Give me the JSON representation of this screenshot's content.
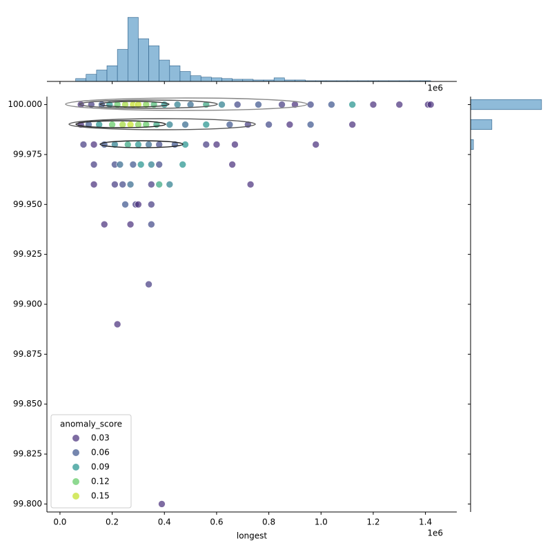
{
  "chart_data": [
    {
      "type": "scatter",
      "x_label": "longest",
      "x_offset_label": "1e6",
      "x": [
        80000,
        120000,
        160000,
        190000,
        220000,
        250000,
        280000,
        300000,
        330000,
        360000,
        400000,
        450000,
        500000,
        560000,
        620000,
        680000,
        760000,
        850000,
        900000,
        960000,
        1040000,
        1120000,
        1200000,
        1300000,
        1410000,
        1420000,
        80000,
        110000,
        150000,
        200000,
        240000,
        270000,
        300000,
        330000,
        370000,
        420000,
        480000,
        560000,
        650000,
        720000,
        800000,
        880000,
        960000,
        1120000,
        90000,
        130000,
        170000,
        210000,
        260000,
        300000,
        340000,
        380000,
        440000,
        480000,
        560000,
        600000,
        670000,
        980000,
        130000,
        210000,
        230000,
        280000,
        310000,
        350000,
        380000,
        470000,
        660000,
        130000,
        210000,
        240000,
        270000,
        350000,
        380000,
        420000,
        730000,
        250000,
        290000,
        300000,
        350000,
        170000,
        270000,
        350000,
        340000,
        220000,
        390000
      ],
      "y": [
        100,
        100,
        100,
        100,
        100,
        100,
        100,
        100,
        100,
        100,
        100,
        100,
        100,
        100,
        100,
        100,
        100,
        100,
        100,
        100,
        100,
        100,
        100,
        100,
        100,
        100,
        99.99,
        99.99,
        99.99,
        99.99,
        99.99,
        99.99,
        99.99,
        99.99,
        99.99,
        99.99,
        99.99,
        99.99,
        99.99,
        99.99,
        99.99,
        99.99,
        99.99,
        99.99,
        99.98,
        99.98,
        99.98,
        99.98,
        99.98,
        99.98,
        99.98,
        99.98,
        99.98,
        99.98,
        99.98,
        99.98,
        99.98,
        99.98,
        99.97,
        99.97,
        99.97,
        99.97,
        99.97,
        99.97,
        99.97,
        99.97,
        99.97,
        99.96,
        99.96,
        99.96,
        99.96,
        99.96,
        99.96,
        99.96,
        99.96,
        99.95,
        99.95,
        99.95,
        99.95,
        99.94,
        99.94,
        99.94,
        99.91,
        99.89,
        99.8
      ],
      "hue": [
        0.02,
        0.04,
        0.06,
        0.09,
        0.12,
        0.14,
        0.16,
        0.15,
        0.13,
        0.11,
        0.09,
        0.08,
        0.07,
        0.1,
        0.08,
        0.05,
        0.06,
        0.04,
        0.03,
        0.05,
        0.06,
        0.09,
        0.02,
        0.03,
        0.01,
        0.02,
        0.03,
        0.06,
        0.09,
        0.12,
        0.14,
        0.15,
        0.13,
        0.12,
        0.1,
        0.08,
        0.07,
        0.09,
        0.06,
        0.04,
        0.05,
        0.03,
        0.06,
        0.01,
        0.04,
        0.03,
        0.06,
        0.08,
        0.1,
        0.09,
        0.07,
        0.05,
        0.06,
        0.09,
        0.04,
        0.02,
        0.01,
        0.01,
        0.04,
        0.05,
        0.07,
        0.06,
        0.09,
        0.08,
        0.05,
        0.09,
        0.02,
        0.03,
        0.04,
        0.05,
        0.07,
        0.04,
        0.1,
        0.08,
        0.02,
        0.06,
        0.04,
        0.02,
        0.04,
        0.02,
        0.03,
        0.05,
        0.04,
        0.02,
        0.03
      ],
      "xlim": [
        -50000,
        1520000
      ],
      "ylim": [
        99.796,
        100.004
      ],
      "xticks": [
        {
          "value": 0,
          "label": "0.0"
        },
        {
          "value": 200000,
          "label": "0.2"
        },
        {
          "value": 400000,
          "label": "0.4"
        },
        {
          "value": 600000,
          "label": "0.6"
        },
        {
          "value": 800000,
          "label": "0.8"
        },
        {
          "value": 1000000,
          "label": "1.0"
        },
        {
          "value": 1200000,
          "label": "1.2"
        },
        {
          "value": 1400000,
          "label": "1.4"
        }
      ],
      "yticks": [
        {
          "value": 99.8,
          "label": "99.800"
        },
        {
          "value": 99.825,
          "label": "99.825"
        },
        {
          "value": 99.85,
          "label": "99.850"
        },
        {
          "value": 99.875,
          "label": "99.875"
        },
        {
          "value": 99.9,
          "label": "99.900"
        },
        {
          "value": 99.925,
          "label": "99.925"
        },
        {
          "value": 99.95,
          "label": "99.950"
        },
        {
          "value": 99.975,
          "label": "99.975"
        },
        {
          "value": 100,
          "label": "100.000"
        }
      ],
      "legend": {
        "title": "anomaly_score",
        "values": [
          0.03,
          0.06,
          0.09,
          0.12,
          0.15
        ],
        "colors": [
          "#472d7b",
          "#3b528b",
          "#21918c",
          "#5ec962",
          "#c2df23"
        ]
      },
      "legend_loc": "lower left"
    },
    {
      "type": "histogram",
      "orientation": "vertical",
      "x_offset_label": "1e6",
      "color": "#8fbbd9",
      "bins": [
        60000,
        100000,
        140000,
        180000,
        220000,
        260000,
        300000,
        340000,
        380000,
        420000,
        460000,
        500000,
        540000,
        580000,
        620000,
        660000,
        700000,
        740000,
        780000,
        820000,
        860000,
        900000,
        940000,
        980000,
        1020000,
        1060000,
        1100000,
        1140000,
        1180000,
        1220000,
        1260000,
        1300000,
        1340000,
        1380000,
        1420000
      ],
      "counts": [
        4,
        10,
        16,
        22,
        45,
        90,
        60,
        50,
        30,
        22,
        14,
        8,
        6,
        5,
        4,
        3,
        3,
        2,
        2,
        5,
        2,
        2,
        1,
        1,
        1,
        1,
        1,
        1,
        1,
        1,
        1,
        1,
        1,
        1
      ],
      "xlim": [
        -50000,
        1520000
      ],
      "ylim": [
        0,
        95
      ],
      "xticks": [
        0,
        200000,
        400000,
        600000,
        800000,
        1000000,
        1200000,
        1400000
      ]
    },
    {
      "type": "histogram",
      "orientation": "horizontal",
      "color": "#8fbbd9",
      "bins": [
        99.9725,
        99.9775,
        99.9825,
        99.9875,
        99.9925,
        99.9975,
        100.0025
      ],
      "counts": [
        0,
        4,
        0,
        30,
        0,
        100
      ],
      "xlim": [
        0,
        105
      ],
      "ylim": [
        99.796,
        100.004
      ],
      "yticks": [
        99.8,
        99.825,
        99.85,
        99.875,
        99.9,
        99.925,
        99.95,
        99.975,
        100
      ]
    }
  ]
}
